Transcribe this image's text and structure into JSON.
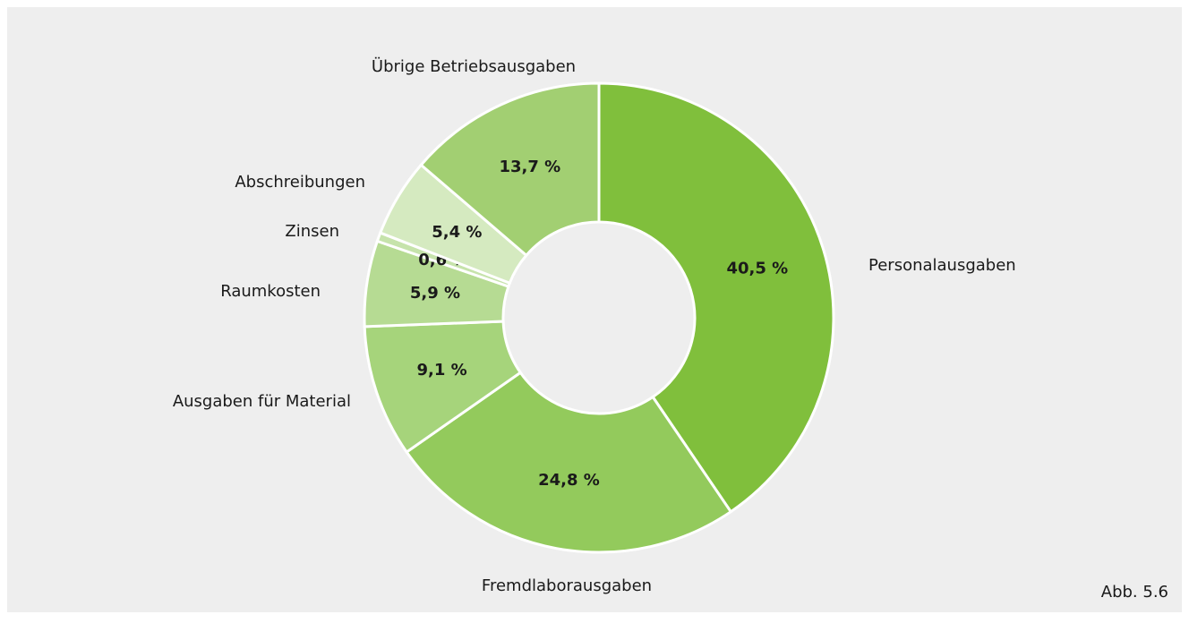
{
  "chart_data": {
    "type": "donut",
    "categories": [
      "Personalausgaben",
      "Fremdlaborausgaben",
      "Ausgaben für Material",
      "Raumkosten",
      "Zinsen",
      "Abschreibungen",
      "Übrige Betriebsausgaben"
    ],
    "values": [
      40.5,
      24.8,
      9.1,
      5.9,
      0.6,
      5.4,
      13.7
    ],
    "value_labels": [
      "40,5 %",
      "24,8 %",
      "9,1 %",
      "5,9 %",
      "0,6 %",
      "5,4 %",
      "13,7 %"
    ],
    "colors": [
      "#80bf3c",
      "#93ca5c",
      "#a6d47b",
      "#b6db93",
      "#c6e3ab",
      "#d5eac0",
      "#a2cf72"
    ],
    "annotation": "Abb. 5.6"
  }
}
